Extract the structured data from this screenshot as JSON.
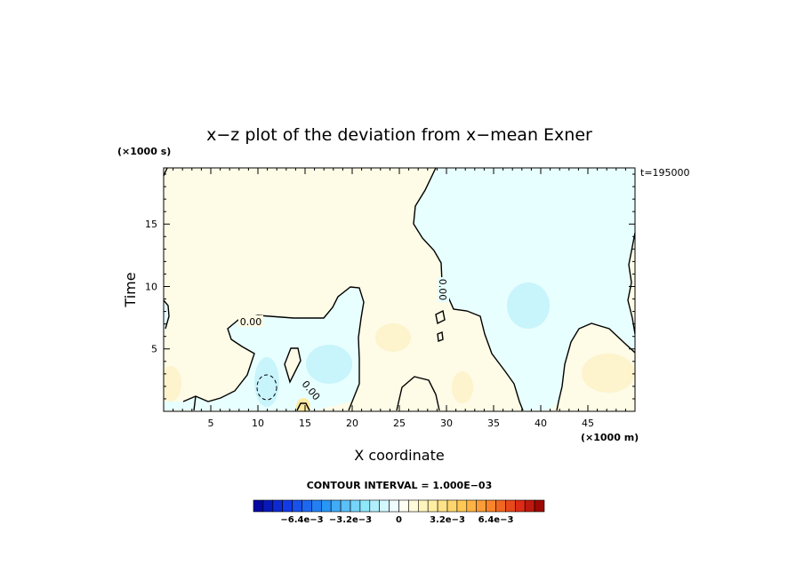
{
  "chart_data": {
    "type": "heatmap",
    "title": "x−z plot of the deviation from x−mean Exner",
    "xlabel": "X coordinate",
    "ylabel": "Time",
    "x_unit": "(×1000 m)",
    "y_unit": "(×1000 s)",
    "time_label": "t=195000",
    "xlim": [
      0,
      50
    ],
    "ylim": [
      0,
      19.5
    ],
    "x_ticks": [
      5,
      10,
      15,
      20,
      25,
      30,
      35,
      40,
      45
    ],
    "y_ticks": [
      5,
      10,
      15
    ],
    "contour_interval_text": "CONTOUR INTERVAL = 1.000E−03",
    "zero_contour_label": "0.00",
    "colorbar": {
      "range": [
        -0.0096,
        0.0096
      ],
      "n_levels": 30,
      "tick_values": [
        -0.0064,
        -0.0032,
        0,
        0.0032,
        0.0064
      ],
      "tick_labels": [
        "−6.4e−3",
        "−3.2e−3",
        "0",
        "3.2e−3",
        "6.4e−3"
      ]
    },
    "colors": {
      "positive_fill": "#fefbe6",
      "negative_fill": "#e8ffff",
      "weak_positive_patch": "#fdf3cc",
      "weak_negative_patch": "#c8f4fb"
    }
  }
}
